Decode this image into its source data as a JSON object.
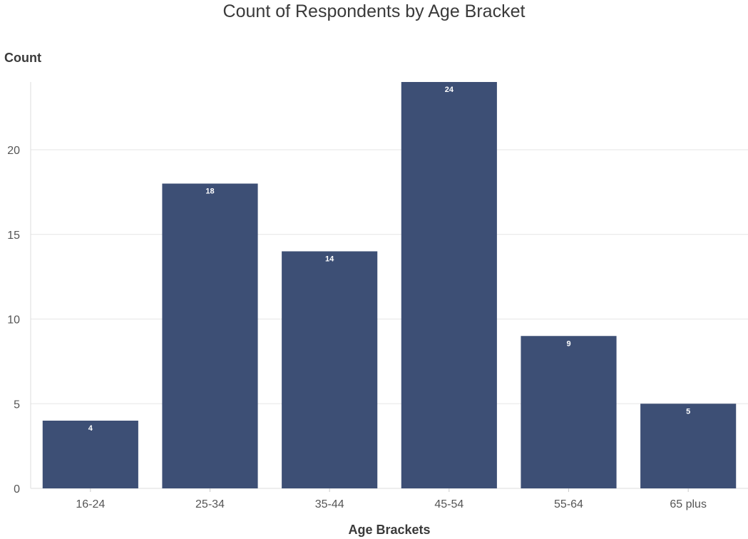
{
  "chart_data": {
    "type": "bar",
    "title": "Count of Respondents by Age Bracket",
    "xlabel": "Age Brackets",
    "ylabel": "Count",
    "categories": [
      "16-24",
      "25-34",
      "35-44",
      "45-54",
      "55-64",
      "65 plus"
    ],
    "values": [
      4,
      18,
      14,
      24,
      9,
      5
    ],
    "data_labels": [
      "4",
      "18",
      "14",
      "24",
      "9",
      "5"
    ],
    "ylim": [
      0,
      24
    ],
    "yticks": [
      0,
      5,
      10,
      15,
      20
    ],
    "grid": true,
    "bar_color": "#3d4f75"
  }
}
